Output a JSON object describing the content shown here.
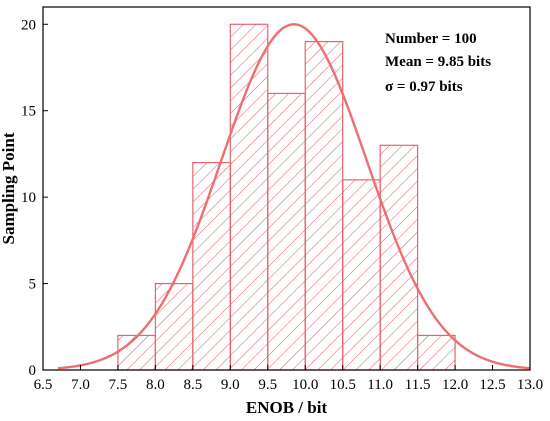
{
  "chart_data": {
    "type": "bar",
    "xlabel": "ENOB / bit",
    "ylabel": "Sampling Point",
    "xlim": [
      6.5,
      13.0
    ],
    "ylim": [
      0,
      21
    ],
    "x_ticks": [
      "6.5",
      "7.0",
      "7.5",
      "8.0",
      "8.5",
      "9.0",
      "9.5",
      "10.0",
      "10.5",
      "11.0",
      "11.5",
      "12.0",
      "12.5",
      "13.0"
    ],
    "y_ticks": [
      "0",
      "5",
      "10",
      "15",
      "20"
    ],
    "bins": [
      {
        "start": 7.5,
        "end": 8.0,
        "count": 2
      },
      {
        "start": 8.0,
        "end": 8.5,
        "count": 5
      },
      {
        "start": 8.5,
        "end": 9.0,
        "count": 12
      },
      {
        "start": 9.0,
        "end": 9.5,
        "count": 20
      },
      {
        "start": 9.5,
        "end": 10.0,
        "count": 16
      },
      {
        "start": 10.0,
        "end": 10.5,
        "count": 19
      },
      {
        "start": 10.5,
        "end": 11.0,
        "count": 11
      },
      {
        "start": 11.0,
        "end": 11.5,
        "count": 13
      },
      {
        "start": 11.5,
        "end": 12.0,
        "count": 2
      }
    ],
    "fit_curve": {
      "type": "normal",
      "mean": 9.85,
      "sigma": 0.97,
      "peak": 20.0,
      "x_range": [
        6.7,
        13.0
      ]
    },
    "annotations": [
      "Number = 100",
      "Mean = 9.85 bits",
      "σ = 0.97 bits"
    ],
    "colors": {
      "bar": "#e8646b",
      "curve": "#ec6f72",
      "axis": "#000000"
    },
    "grid": false,
    "legend": "none"
  }
}
